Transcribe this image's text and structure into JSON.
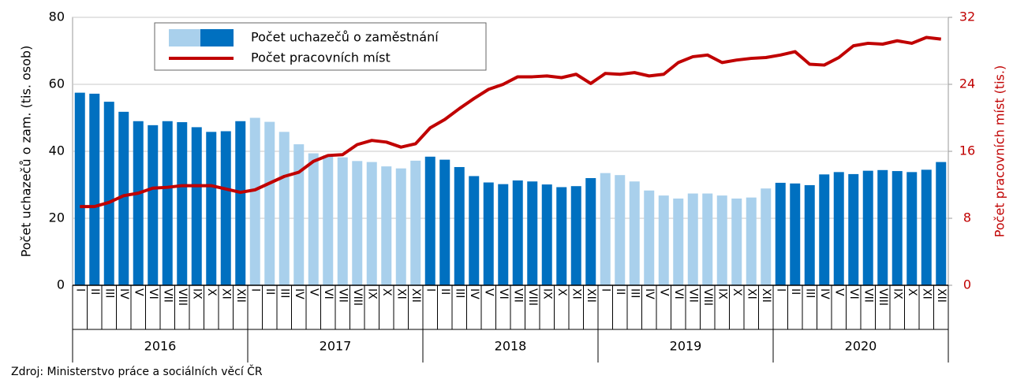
{
  "chart_data": {
    "type": "bar_line",
    "y_label": "Počet uchazečů o zam. (tis. osob)",
    "y2_label": "Počet pracovních míst (tis.)",
    "source": "Zdroj: Ministerstvo práce a sociálních věcí ČR",
    "categories": [
      "I",
      "II",
      "III",
      "IV",
      "V",
      "VI",
      "VII",
      "VIII",
      "IX",
      "X",
      "XI",
      "XII",
      "I",
      "II",
      "III",
      "IV",
      "V",
      "VI",
      "VII",
      "VIII",
      "IX",
      "X",
      "XI",
      "XII",
      "I",
      "II",
      "III",
      "IV",
      "V",
      "VI",
      "VII",
      "VIII",
      "IX",
      "X",
      "XI",
      "XII",
      "I",
      "II",
      "III",
      "IV",
      "V",
      "VI",
      "VII",
      "VIII",
      "IX",
      "X",
      "XI",
      "XII",
      "I",
      "II",
      "III",
      "IV",
      "V",
      "VI",
      "VII",
      "VIII",
      "IX",
      "X",
      "XI",
      "XII"
    ],
    "years": [
      "2016",
      "2017",
      "2018",
      "2019",
      "2020"
    ],
    "series": [
      {
        "name": "Počet uchazečů o zaměstnání",
        "type": "bar",
        "colors": [
          "#0070c0",
          "#a9d0ec",
          "#0070c0",
          "#a9d0ec",
          "#0070c0"
        ],
        "values": [
          57.5,
          57.2,
          54.8,
          51.8,
          49,
          47.8,
          49,
          48.7,
          47.2,
          45.8,
          46,
          49,
          50,
          48.8,
          45.8,
          42.1,
          39.4,
          38.8,
          38.2,
          37.1,
          36.8,
          35.5,
          34.9,
          37.2,
          38.4,
          37.5,
          35.3,
          32.6,
          30.7,
          30.2,
          31.3,
          31,
          30.1,
          29.3,
          29.6,
          32,
          33.5,
          32.9,
          31,
          28.3,
          26.8,
          25.9,
          27.4,
          27.4,
          26.8,
          25.9,
          26.2,
          28.9,
          30.6,
          30.4,
          29.9,
          33.1,
          33.8,
          33.2,
          34.2,
          34.4,
          34.1,
          33.8,
          34.5,
          36.8
        ]
      },
      {
        "name": "Počet pracovních míst",
        "type": "line",
        "axis": "y2",
        "color": "#c00000",
        "values": [
          9.4,
          9.4,
          9.9,
          10.7,
          11,
          11.6,
          11.7,
          11.9,
          11.9,
          11.9,
          11.5,
          11.1,
          11.4,
          12.2,
          13,
          13.5,
          14.8,
          15.5,
          15.6,
          16.8,
          17.3,
          17.1,
          16.5,
          16.9,
          18.8,
          19.8,
          21.1,
          22.3,
          23.4,
          24,
          24.9,
          24.9,
          25,
          24.8,
          25.2,
          24.1,
          25.3,
          25.2,
          25.4,
          25,
          25.2,
          26.6,
          27.3,
          27.5,
          26.6,
          26.9,
          27.1,
          27.2,
          27.5,
          27.9,
          26.4,
          26.3,
          27.2,
          28.6,
          28.9,
          28.8,
          29.2,
          28.9,
          29.6,
          29.4
        ]
      }
    ],
    "ylim": [
      0,
      80
    ],
    "yticks": [
      0,
      20,
      40,
      60,
      80
    ],
    "y2lim": [
      0,
      32
    ],
    "y2ticks": [
      0,
      8,
      16,
      24,
      32
    ],
    "y2_color": "#c00000",
    "grid": true
  }
}
